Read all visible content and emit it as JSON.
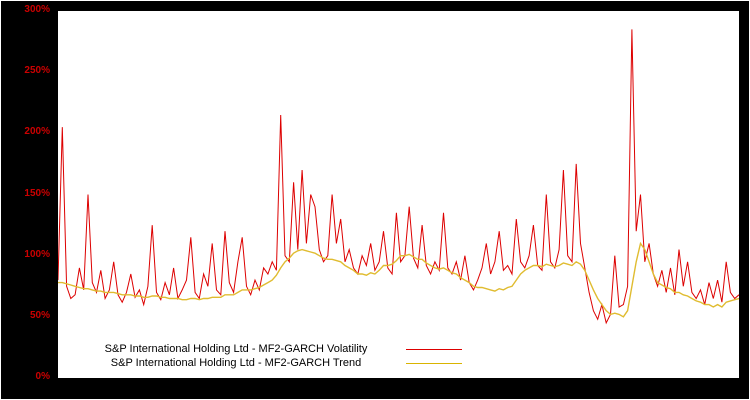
{
  "colors": {
    "background": "#000000",
    "plot_background": "#ffffff",
    "axis_label": "#cc0000",
    "volatility_line": "#dd0000",
    "trend_line": "#e0bc30"
  },
  "y_axis": {
    "ticks": [
      {
        "label": "300%",
        "value": 300
      },
      {
        "label": "250%",
        "value": 250
      },
      {
        "label": "200%",
        "value": 200
      },
      {
        "label": "150%",
        "value": 150
      },
      {
        "label": "100%",
        "value": 100
      },
      {
        "label": "50%",
        "value": 50
      },
      {
        "label": "0%",
        "value": 0
      }
    ]
  },
  "legend": {
    "items": [
      {
        "label": "S&P International Holding Ltd - MF2-GARCH Volatility",
        "color": "#dd0000"
      },
      {
        "label": "S&P International Holding Ltd - MF2-GARCH Trend",
        "color": "#d9b400"
      }
    ],
    "position": "bottom-left"
  },
  "chart_data": {
    "type": "line",
    "title": "",
    "xlabel": "",
    "ylabel": "",
    "ylim": [
      0,
      300
    ],
    "grid": false,
    "legend_position": "bottom-left",
    "series": [
      {
        "name": "S&P International Holding Ltd - MF2-GARCH Volatility",
        "color": "#dd0000",
        "width": 1,
        "data_name": "volatility-line",
        "values": [
          80,
          205,
          75,
          65,
          68,
          90,
          72,
          150,
          78,
          70,
          88,
          65,
          72,
          95,
          68,
          62,
          70,
          85,
          66,
          72,
          60,
          75,
          125,
          70,
          64,
          78,
          68,
          90,
          65,
          72,
          80,
          115,
          70,
          65,
          85,
          75,
          110,
          72,
          68,
          120,
          78,
          70,
          95,
          115,
          75,
          68,
          80,
          72,
          90,
          85,
          95,
          88,
          215,
          100,
          95,
          160,
          105,
          170,
          110,
          150,
          140,
          105,
          95,
          100,
          150,
          110,
          130,
          95,
          105,
          90,
          85,
          100,
          92,
          110,
          88,
          95,
          120,
          90,
          85,
          135,
          95,
          100,
          140,
          98,
          90,
          125,
          92,
          85,
          95,
          88,
          135,
          90,
          85,
          95,
          80,
          100,
          78,
          72,
          80,
          90,
          110,
          85,
          95,
          120,
          88,
          92,
          85,
          130,
          95,
          90,
          100,
          125,
          92,
          88,
          150,
          95,
          90,
          105,
          170,
          100,
          95,
          175,
          110,
          90,
          70,
          55,
          48,
          60,
          45,
          52,
          100,
          58,
          60,
          75,
          285,
          120,
          150,
          95,
          110,
          85,
          75,
          88,
          70,
          90,
          68,
          105,
          75,
          95,
          70,
          65,
          72,
          60,
          78,
          65,
          80,
          62,
          95,
          70,
          65,
          68
        ]
      },
      {
        "name": "S&P International Holding Ltd - MF2-GARCH Trend",
        "color": "#e0bc30",
        "width": 1.4,
        "data_name": "trend-line",
        "values": [
          78,
          78,
          77,
          76,
          75,
          74,
          73,
          73,
          72,
          71,
          71,
          70,
          70,
          70,
          69,
          68,
          68,
          68,
          67,
          67,
          66,
          66,
          67,
          67,
          66,
          66,
          65,
          65,
          65,
          64,
          64,
          65,
          65,
          64,
          65,
          65,
          66,
          66,
          66,
          68,
          68,
          68,
          70,
          72,
          72,
          72,
          73,
          74,
          76,
          78,
          80,
          84,
          90,
          95,
          98,
          102,
          104,
          105,
          104,
          103,
          102,
          100,
          98,
          97,
          97,
          96,
          95,
          92,
          90,
          88,
          85,
          85,
          84,
          86,
          85,
          88,
          92,
          92,
          93,
          96,
          100,
          100,
          101,
          99,
          97,
          97,
          94,
          92,
          90,
          89,
          90,
          88,
          86,
          85,
          82,
          80,
          78,
          75,
          74,
          74,
          73,
          72,
          71,
          73,
          72,
          74,
          75,
          80,
          85,
          88,
          90,
          92,
          92,
          91,
          93,
          92,
          91,
          92,
          94,
          93,
          92,
          95,
          93,
          88,
          80,
          72,
          65,
          60,
          55,
          52,
          53,
          52,
          50,
          55,
          75,
          95,
          110,
          105,
          95,
          85,
          78,
          76,
          74,
          73,
          70,
          70,
          68,
          67,
          65,
          63,
          62,
          60,
          60,
          58,
          60,
          58,
          62,
          63,
          64,
          65
        ]
      }
    ]
  }
}
